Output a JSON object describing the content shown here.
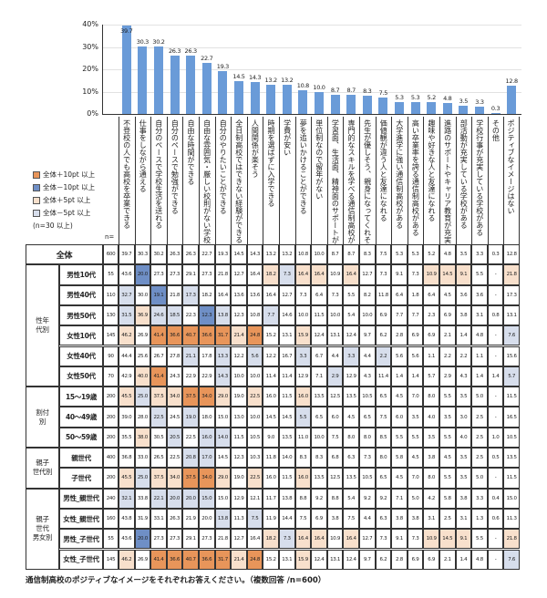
{
  "chart_data": {
    "type": "bar",
    "title": "",
    "ylabel": "",
    "xlabel": "",
    "ylim": [
      0,
      40
    ],
    "yticks": [
      "0%",
      "10%",
      "20%",
      "30%",
      "40%"
    ],
    "grid": true,
    "bar_color": "#6a9bd8",
    "categories": [
      "不登校の人でも高校を卒業できる",
      "仕事をしながら通える",
      "自分のペースで学校生活を送れる",
      "自分のペースで勉強ができる",
      "自由な時間ができる",
      "自由な雰囲気・厳しい校則がない学校",
      "自分のやりたいことができる",
      "全日制高校ではできない経験ができる",
      "人間関係が楽そう",
      "時期を選ばずに入学できる",
      "学費が安い",
      "夢を追いかけることができる",
      "単位制なので留年がない",
      "学習面、生活面、精神面のサポートが充実している",
      "専門的なスキルを学べる通信制高校がある",
      "先生が優しそう、親身になってくれそう",
      "価値観が違う人と友達になれる",
      "大学進学に強い通信制高校がある",
      "高い卒業率を誇る通信制高校がある",
      "趣味や好きな人と友達になれる",
      "進路のサポートやキャリア教育が充実している",
      "部活動が充実している学校がある",
      "学校行事が充実している学校がある",
      "その他",
      "ポジティブなイメージはない"
    ],
    "values": [
      39.7,
      30.3,
      30.2,
      26.3,
      26.3,
      22.7,
      19.3,
      14.5,
      14.3,
      13.2,
      13.2,
      10.8,
      10.0,
      8.7,
      8.7,
      8.3,
      7.5,
      5.3,
      5.3,
      5.2,
      4.8,
      3.5,
      3.3,
      0.3,
      12.8
    ]
  },
  "legend": {
    "items": [
      {
        "label": "全体＋10pt 以上",
        "color": "#e8955a",
        "threshold": 10
      },
      {
        "label": "全体－10pt 以上",
        "color": "#6f8fc6",
        "threshold": -10
      },
      {
        "label": "全体＋5pt 以上",
        "color": "#f8e0cc",
        "threshold": 5
      },
      {
        "label": "全体－5pt 以上",
        "color": "#d7deec",
        "threshold": -5
      }
    ],
    "note": "(n=30 以上)",
    "n_label": "n="
  },
  "table": {
    "groups": [
      {
        "label": "",
        "rows": [
          {
            "label": "全体",
            "n": "600",
            "values": [
              "39.7",
              "30.3",
              "30.2",
              "26.3",
              "26.3",
              "22.7",
              "19.3",
              "14.5",
              "14.3",
              "13.2",
              "13.2",
              "10.8",
              "10.0",
              "8.7",
              "8.7",
              "8.3",
              "7.5",
              "5.3",
              "5.3",
              "5.2",
              "4.8",
              "3.5",
              "3.3",
              "0.3",
              "12.8"
            ]
          }
        ]
      },
      {
        "label": "性年\n代別",
        "rows": [
          {
            "label": "男性10代",
            "n": "55",
            "values": [
              "43.6",
              "20.0",
              "27.3",
              "27.3",
              "29.1",
              "27.3",
              "21.8",
              "12.7",
              "16.4",
              "18.2",
              "7.3",
              "16.4",
              "16.4",
              "10.9",
              "16.4",
              "12.7",
              "7.3",
              "9.1",
              "7.3",
              "10.9",
              "14.5",
              "9.1",
              "5.5",
              "-",
              "21.8"
            ]
          },
          {
            "label": "男性40代",
            "n": "110",
            "values": [
              "32.7",
              "30.0",
              "19.1",
              "21.8",
              "17.3",
              "18.2",
              "16.4",
              "13.6",
              "13.6",
              "16.4",
              "12.7",
              "7.3",
              "6.4",
              "7.3",
              "5.5",
              "8.2",
              "11.8",
              "6.4",
              "1.8",
              "6.4",
              "4.5",
              "3.6",
              "3.6",
              "-",
              "17.3"
            ]
          },
          {
            "label": "男性50代",
            "n": "130",
            "values": [
              "31.5",
              "36.9",
              "24.6",
              "18.5",
              "22.3",
              "12.3",
              "13.8",
              "12.3",
              "10.8",
              "7.7",
              "14.6",
              "10.0",
              "11.5",
              "10.0",
              "5.4",
              "10.0",
              "6.9",
              "7.7",
              "7.7",
              "2.3",
              "6.9",
              "3.8",
              "3.1",
              "0.8",
              "13.1"
            ]
          },
          {
            "label": "女性10代",
            "n": "145",
            "values": [
              "46.2",
              "26.9",
              "41.4",
              "36.6",
              "40.7",
              "36.6",
              "31.7",
              "21.4",
              "24.8",
              "15.2",
              "13.1",
              "15.9",
              "12.4",
              "13.1",
              "12.4",
              "9.7",
              "6.2",
              "2.8",
              "6.9",
              "6.9",
              "2.1",
              "1.4",
              "4.8",
              "-",
              "7.6"
            ]
          },
          {
            "label": "女性40代",
            "n": "90",
            "values": [
              "44.4",
              "25.6",
              "26.7",
              "27.8",
              "21.1",
              "17.8",
              "13.3",
              "12.2",
              "5.6",
              "12.2",
              "16.7",
              "3.3",
              "6.7",
              "4.4",
              "3.3",
              "4.4",
              "2.2",
              "5.6",
              "5.6",
              "1.1",
              "2.2",
              "2.2",
              "1.1",
              "-",
              "15.6"
            ]
          },
          {
            "label": "女性50代",
            "n": "70",
            "values": [
              "42.9",
              "40.0",
              "41.4",
              "24.3",
              "22.9",
              "22.9",
              "14.3",
              "10.0",
              "10.0",
              "11.4",
              "11.4",
              "12.9",
              "7.1",
              "2.9",
              "12.9",
              "4.3",
              "11.4",
              "1.4",
              "1.4",
              "5.7",
              "2.9",
              "4.3",
              "1.4",
              "1.4",
              "5.7"
            ]
          }
        ]
      },
      {
        "label": "割付\n別",
        "rows": [
          {
            "label": "15～19歳",
            "n": "200",
            "values": [
              "45.5",
              "25.0",
              "37.5",
              "34.0",
              "37.5",
              "34.0",
              "29.0",
              "19.0",
              "22.5",
              "16.0",
              "11.5",
              "16.0",
              "13.5",
              "12.5",
              "13.5",
              "10.5",
              "6.5",
              "4.5",
              "7.0",
              "8.0",
              "5.5",
              "3.5",
              "5.0",
              "-",
              "11.5"
            ]
          },
          {
            "label": "40～49歳",
            "n": "200",
            "values": [
              "39.0",
              "28.0",
              "22.5",
              "24.5",
              "19.0",
              "18.0",
              "15.0",
              "13.0",
              "10.0",
              "14.5",
              "14.5",
              "5.5",
              "6.5",
              "6.0",
              "4.5",
              "6.5",
              "7.5",
              "6.0",
              "3.5",
              "4.0",
              "3.5",
              "3.0",
              "2.5",
              "-",
              "16.5"
            ]
          },
          {
            "label": "50～59歳",
            "n": "200",
            "values": [
              "35.5",
              "38.0",
              "30.5",
              "20.5",
              "22.5",
              "16.0",
              "14.0",
              "11.5",
              "10.5",
              "9.0",
              "13.5",
              "11.0",
              "10.0",
              "7.5",
              "8.0",
              "8.0",
              "8.5",
              "5.5",
              "5.5",
              "3.5",
              "5.5",
              "4.0",
              "2.5",
              "1.0",
              "10.5"
            ]
          }
        ]
      },
      {
        "label": "親子\n世代別",
        "rows": [
          {
            "label": "親世代",
            "n": "400",
            "values": [
              "36.8",
              "33.0",
              "26.5",
              "22.5",
              "20.8",
              "17.0",
              "14.5",
              "12.3",
              "10.3",
              "11.8",
              "14.0",
              "8.3",
              "8.3",
              "6.8",
              "6.3",
              "7.3",
              "8.0",
              "5.8",
              "4.5",
              "3.8",
              "4.5",
              "3.5",
              "2.5",
              "0.5",
              "13.5"
            ]
          },
          {
            "label": "子世代",
            "n": "200",
            "values": [
              "45.5",
              "25.0",
              "37.5",
              "34.0",
              "37.5",
              "34.0",
              "29.0",
              "19.0",
              "22.5",
              "16.0",
              "11.5",
              "16.0",
              "13.5",
              "12.5",
              "13.5",
              "10.5",
              "6.5",
              "4.5",
              "7.0",
              "8.0",
              "5.5",
              "3.5",
              "5.0",
              "-",
              "11.5"
            ]
          }
        ]
      },
      {
        "label": "親子\n世代\n男女別",
        "rows": [
          {
            "label": "男性_親世代",
            "n": "240",
            "values": [
              "32.1",
              "33.8",
              "22.1",
              "20.0",
              "20.0",
              "15.0",
              "15.0",
              "12.9",
              "12.1",
              "11.7",
              "13.8",
              "8.8",
              "9.2",
              "8.8",
              "5.4",
              "9.2",
              "9.2",
              "7.1",
              "5.0",
              "4.2",
              "5.8",
              "3.8",
              "3.3",
              "0.4",
              "15.0"
            ]
          },
          {
            "label": "女性_親世代",
            "n": "160",
            "values": [
              "43.8",
              "31.9",
              "33.1",
              "26.3",
              "21.9",
              "20.0",
              "13.8",
              "11.3",
              "7.5",
              "11.9",
              "14.4",
              "7.5",
              "6.9",
              "3.8",
              "7.5",
              "4.4",
              "6.3",
              "3.8",
              "3.8",
              "3.1",
              "2.5",
              "3.1",
              "1.3",
              "0.6",
              "11.3"
            ]
          },
          {
            "label": "男性_子世代",
            "n": "55",
            "values": [
              "43.6",
              "20.0",
              "27.3",
              "27.3",
              "29.1",
              "27.3",
              "21.8",
              "12.7",
              "16.4",
              "18.2",
              "7.3",
              "16.4",
              "16.4",
              "10.9",
              "16.4",
              "12.7",
              "7.3",
              "9.1",
              "7.3",
              "10.9",
              "14.5",
              "9.1",
              "5.5",
              "-",
              "21.8"
            ]
          },
          {
            "label": "女性_子世代",
            "n": "145",
            "values": [
              "46.2",
              "26.9",
              "41.4",
              "36.6",
              "40.7",
              "36.6",
              "31.7",
              "21.4",
              "24.8",
              "15.2",
              "13.1",
              "15.9",
              "12.4",
              "13.1",
              "12.4",
              "9.7",
              "6.2",
              "2.8",
              "6.9",
              "6.9",
              "2.1",
              "1.4",
              "4.8",
              "-",
              "7.6"
            ]
          }
        ]
      }
    ]
  },
  "caption": "通信制高校のポジティブなイメージをそれぞれお答えください。（複数回答 /n=600）"
}
